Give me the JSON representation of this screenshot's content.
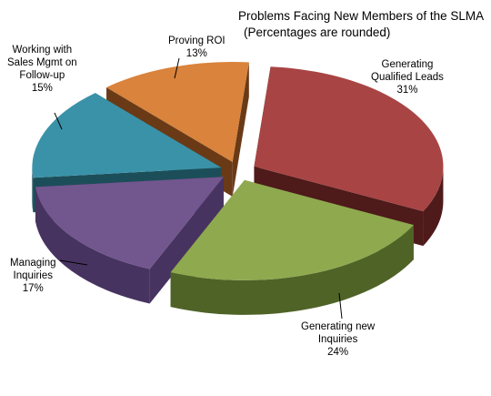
{
  "chart_data": {
    "type": "pie",
    "title": "Problems Facing New Members of the SLMA",
    "subtitle": "(Percentages are rounded)",
    "style": "3d-exploded",
    "slices": [
      {
        "label_lines": [
          "Generating",
          "Qualified Leads"
        ],
        "label": "Generating Qualified Leads",
        "value": 31,
        "pct_label": "31%",
        "color": "#A84444",
        "side_color": "#4E1A1A"
      },
      {
        "label_lines": [
          "Generating new",
          "Inquiries"
        ],
        "label": "Generating new Inquiries",
        "value": 24,
        "pct_label": "24%",
        "color": "#8FA94F",
        "side_color": "#4F6327"
      },
      {
        "label_lines": [
          "Managing",
          "Inquiries"
        ],
        "label": "Managing Inquiries",
        "value": 17,
        "pct_label": "17%",
        "color": "#72568E",
        "side_color": "#473360"
      },
      {
        "label_lines": [
          "Working with",
          "Sales Mgmt on",
          "Follow-up"
        ],
        "label": "Working with Sales Mgmt on Follow-up",
        "value": 15,
        "pct_label": "15%",
        "color": "#3A92A8",
        "side_color": "#1C4E5A"
      },
      {
        "label_lines": [
          "Proving ROI"
        ],
        "label": "Proving ROI",
        "value": 13,
        "pct_label": "13%",
        "color": "#D9833C",
        "side_color": "#6A3A17"
      }
    ]
  }
}
